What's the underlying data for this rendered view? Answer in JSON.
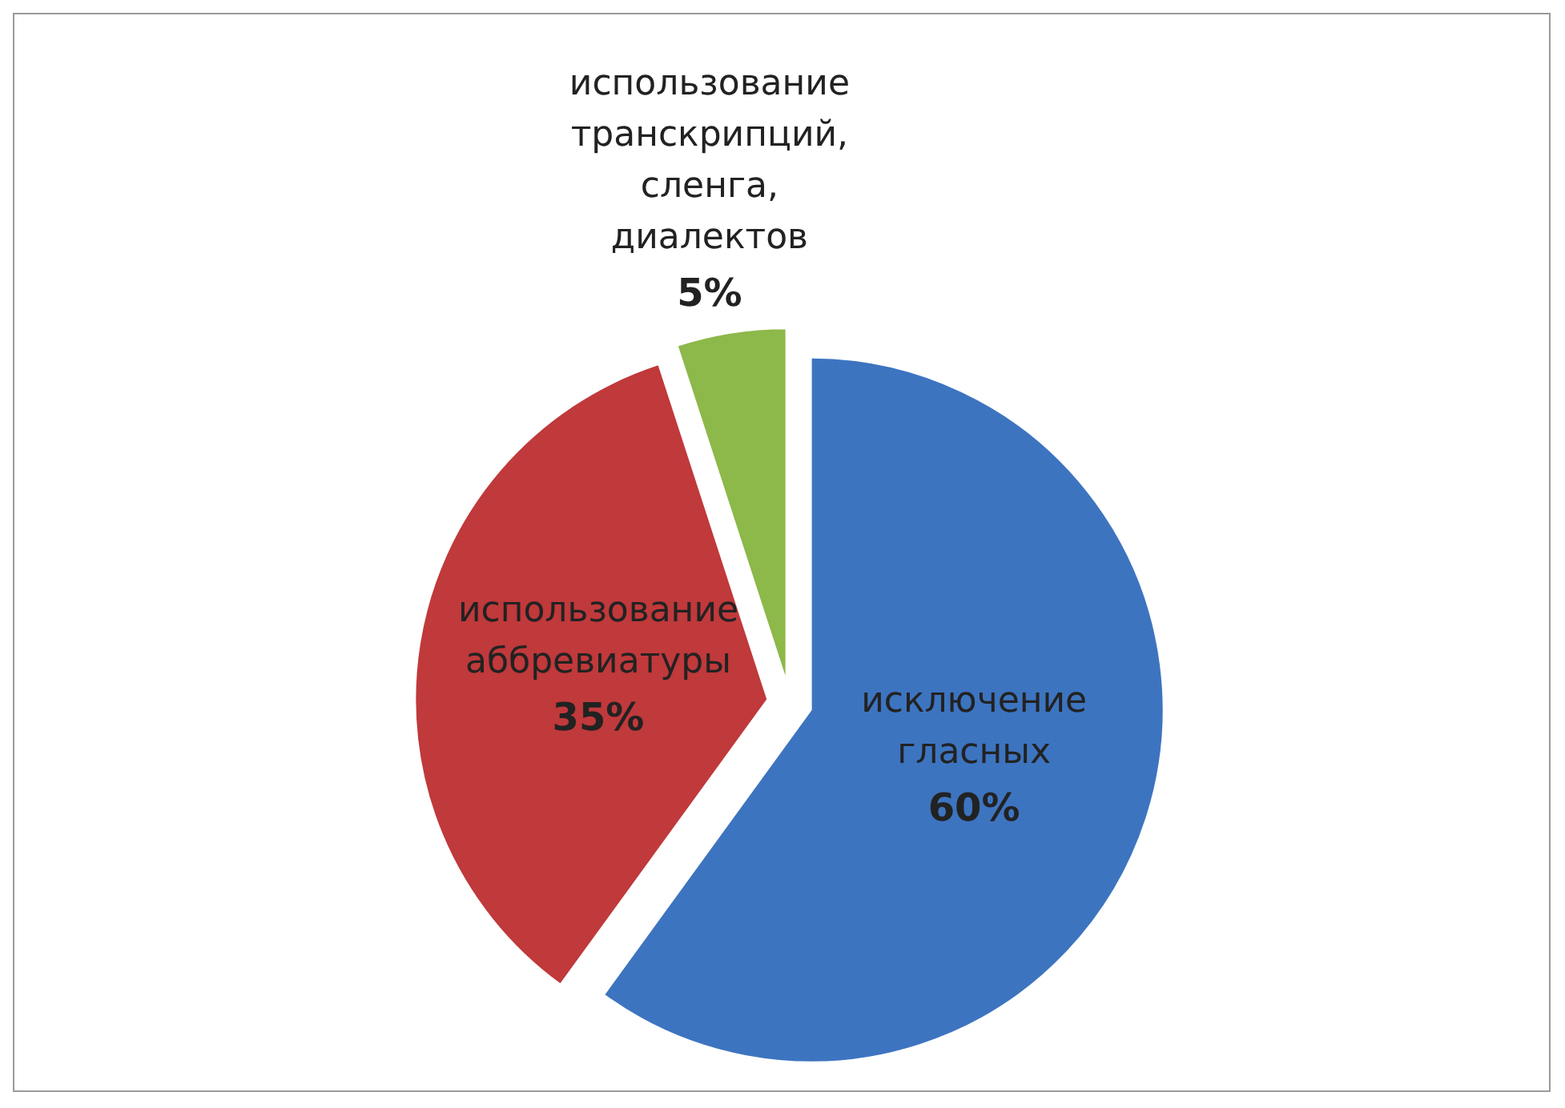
{
  "chart_data": {
    "type": "pie",
    "categories": [
      "исключение гласных",
      "использование аббревиатуры",
      "использование транскрипций, сленга, диалектов"
    ],
    "values": [
      60,
      35,
      5
    ],
    "colors": [
      "#3d74c0",
      "#c0393b",
      "#8db84a"
    ],
    "value_labels": [
      "60%",
      "35%",
      "5%"
    ]
  }
}
